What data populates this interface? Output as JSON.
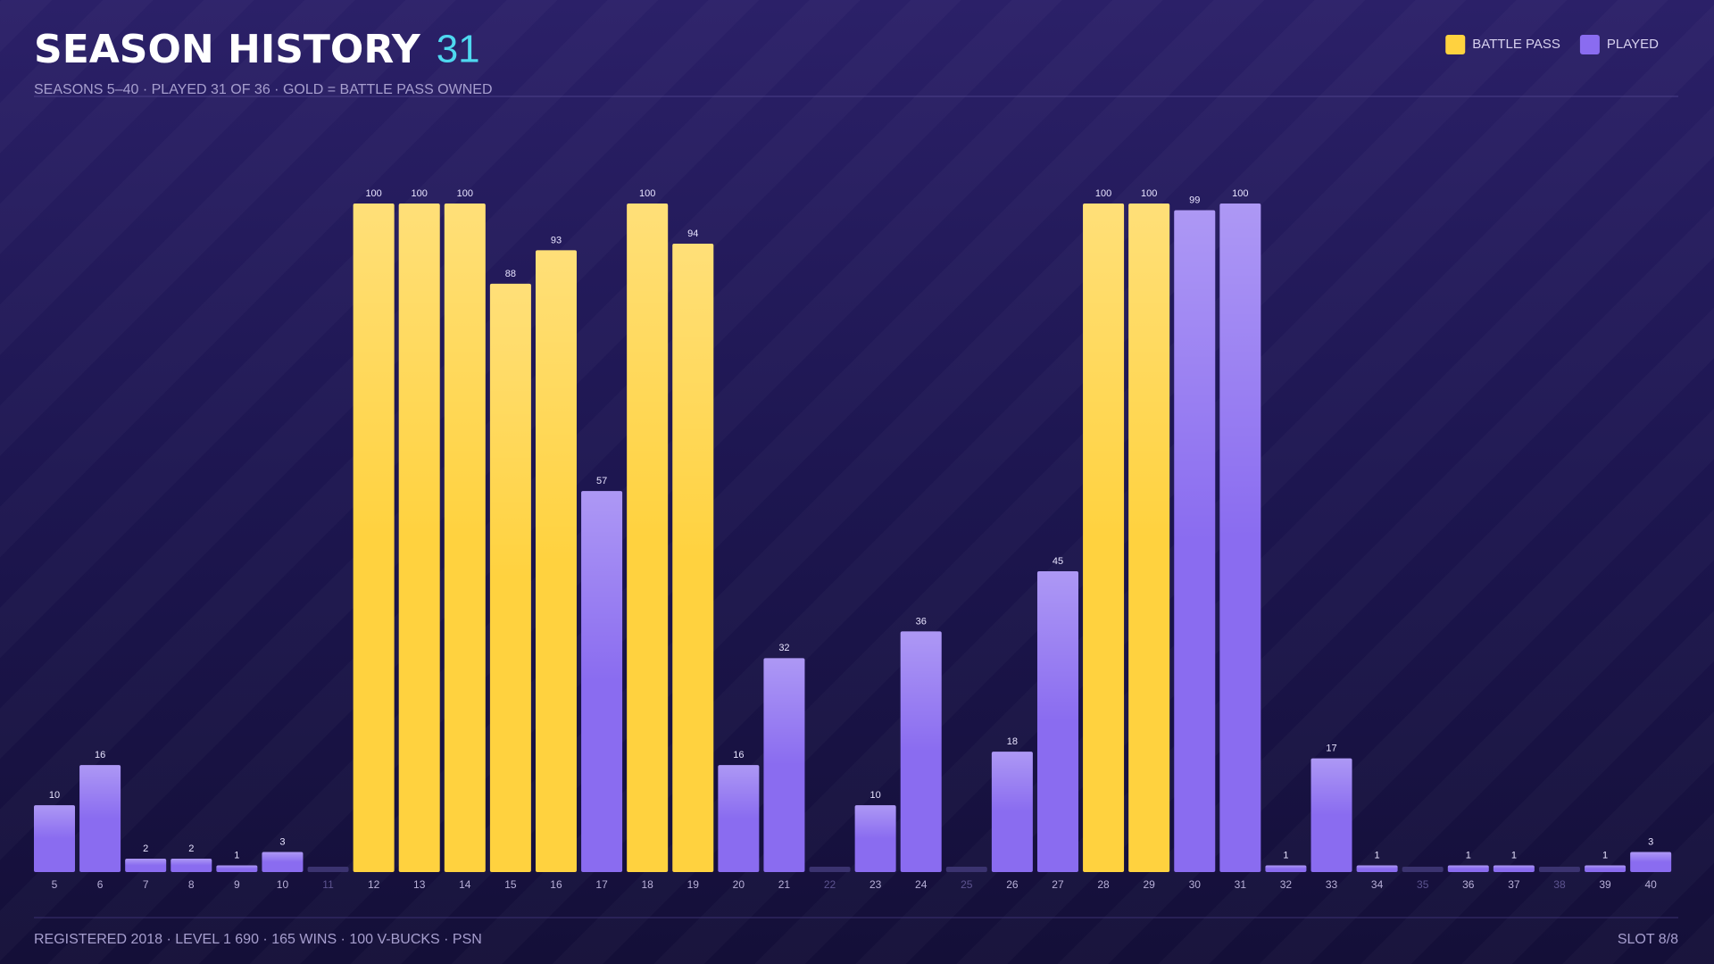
{
  "chart_data": {
    "type": "bar",
    "title": "SEASON HISTORY",
    "count": 31,
    "subtitle": "SEASONS 5–40  ·  PLAYED 31 OF 36  ·  GOLD = BATTLE PASS OWNED",
    "categories": [
      "5",
      "6",
      "7",
      "8",
      "9",
      "10",
      "11",
      "12",
      "13",
      "14",
      "15",
      "16",
      "17",
      "18",
      "19",
      "20",
      "21",
      "22",
      "23",
      "24",
      "25",
      "26",
      "27",
      "28",
      "29",
      "30",
      "31",
      "32",
      "33",
      "34",
      "35",
      "36",
      "37",
      "38",
      "39",
      "40"
    ],
    "series": [
      {
        "name": "BATTLE PASS",
        "color": "#ffd23f",
        "values": [
          null,
          null,
          null,
          null,
          null,
          null,
          null,
          100,
          100,
          100,
          88,
          93,
          null,
          100,
          94,
          null,
          null,
          null,
          null,
          null,
          null,
          null,
          null,
          100,
          100,
          null,
          null,
          null,
          null,
          null,
          null,
          null,
          null,
          null,
          null,
          null
        ]
      },
      {
        "name": "PLAYED",
        "color": "#8a6cf0",
        "values": [
          10,
          16,
          2,
          2,
          1,
          3,
          null,
          null,
          null,
          null,
          null,
          null,
          57,
          null,
          null,
          16,
          32,
          null,
          10,
          36,
          null,
          18,
          45,
          null,
          null,
          99,
          100,
          1,
          17,
          1,
          null,
          1,
          1,
          null,
          1,
          3
        ]
      }
    ],
    "ylim": [
      0,
      100
    ],
    "footer": "REGISTERED 2018  ·  LEVEL 1 690  ·  165 WINS  ·  100 V-BUCKS  ·  PSN",
    "slot": "SLOT 8/8"
  }
}
